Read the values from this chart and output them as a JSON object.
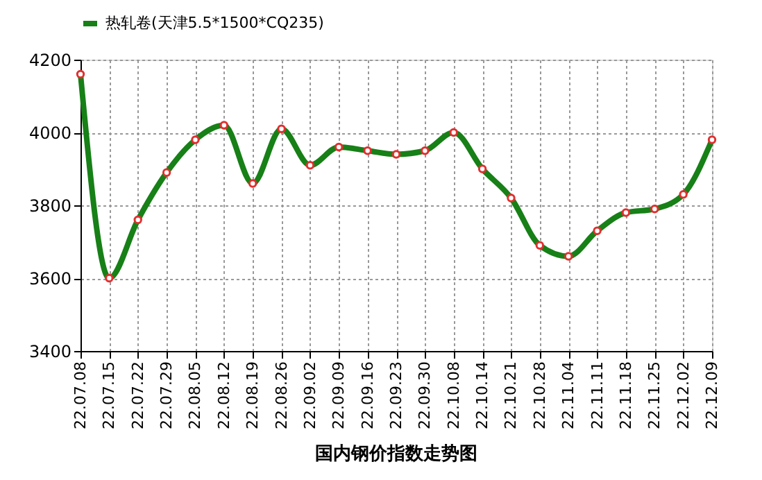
{
  "chart_data": {
    "type": "line",
    "title": "国内钢价指数走势图",
    "categories": [
      "22.07.08",
      "22.07.15",
      "22.07.22",
      "22.07.29",
      "22.08.05",
      "22.08.12",
      "22.08.19",
      "22.08.26",
      "22.09.02",
      "22.09.09",
      "22.09.16",
      "22.09.23",
      "22.09.30",
      "22.10.08",
      "22.10.14",
      "22.10.21",
      "22.10.28",
      "22.11.04",
      "22.11.11",
      "22.11.18",
      "22.11.25",
      "22.12.02",
      "22.12.09"
    ],
    "series": [
      {
        "name": "热轧卷(天津5.5*1500*CQ235)",
        "color": "#178017",
        "values": [
          4160,
          3600,
          3760,
          3890,
          3980,
          4020,
          3860,
          4010,
          3910,
          3960,
          3950,
          3940,
          3950,
          4000,
          3900,
          3820,
          3690,
          3660,
          3730,
          3780,
          3790,
          3830,
          3980
        ]
      }
    ],
    "ylim": [
      3400,
      4200
    ],
    "yticks": [
      3400,
      3600,
      3800,
      4000,
      4200
    ],
    "grid": true,
    "legend": "top",
    "marker": "circle",
    "line_style": "solid"
  }
}
